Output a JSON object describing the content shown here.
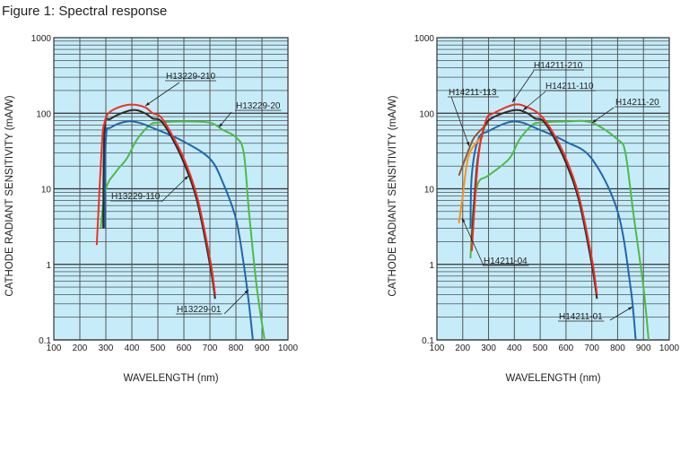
{
  "figure_title": "Figure 1: Spectral response",
  "chart_data": [
    {
      "type": "line",
      "xlabel": "WAVELENGTH (nm)",
      "ylabel": "CATHODE RADIANT SENSITIVITY (mA/W)",
      "xlim": [
        100,
        1000
      ],
      "ylim": [
        0.1,
        1000
      ],
      "yscale": "log",
      "grid": true,
      "xticks": [
        "100",
        "200",
        "300",
        "400",
        "500",
        "600",
        "700",
        "800",
        "900",
        "1000"
      ],
      "yticks": [
        "0.1",
        "1",
        "10",
        "100",
        "1000"
      ],
      "series": [
        {
          "name": "H13229-20",
          "color": "#4cbb47",
          "x": [
            280,
            300,
            340,
            380,
            420,
            470,
            500,
            600,
            700,
            750,
            800,
            830,
            850,
            880,
            910
          ],
          "y": [
            3,
            10,
            17,
            25,
            45,
            70,
            75,
            78,
            75,
            60,
            48,
            30,
            5,
            0.5,
            0.1
          ]
        },
        {
          "name": "H13229-01",
          "color": "#1f66b0",
          "x": [
            295,
            300,
            320,
            400,
            500,
            600,
            700,
            750,
            800,
            830,
            850,
            865
          ],
          "y": [
            3,
            45,
            65,
            78,
            60,
            42,
            25,
            12,
            4,
            1,
            0.3,
            0.1
          ]
        },
        {
          "name": "H13229-110",
          "color": "#2a2a2a",
          "x": [
            290,
            295,
            320,
            400,
            450,
            480,
            510,
            550,
            600,
            650,
            700,
            720
          ],
          "y": [
            3,
            60,
            85,
            110,
            100,
            85,
            80,
            50,
            22,
            7,
            1,
            0.35
          ]
        },
        {
          "name": "H13229-210",
          "color": "#ee3124",
          "x": [
            265,
            285,
            295,
            310,
            350,
            400,
            450,
            480,
            510,
            550,
            600,
            650,
            700,
            720
          ],
          "y": [
            1.8,
            40,
            75,
            100,
            120,
            130,
            120,
            100,
            90,
            55,
            25,
            8,
            1.2,
            0.4
          ]
        }
      ],
      "annotations": [
        "H13229-210",
        "H13229-20",
        "H13229-110",
        "H13229-01"
      ]
    },
    {
      "type": "line",
      "xlabel": "WAVELENGTH (nm)",
      "ylabel": "CATHODE RADIANT SENSITIVITY (mA/W)",
      "xlim": [
        100,
        1000
      ],
      "ylim": [
        0.1,
        1000
      ],
      "yscale": "log",
      "grid": true,
      "xticks": [
        "100",
        "200",
        "300",
        "400",
        "500",
        "600",
        "700",
        "800",
        "900",
        "1000"
      ],
      "yticks": [
        "0.1",
        "1",
        "10",
        "100",
        "1000"
      ],
      "series": [
        {
          "name": "H14211-20",
          "color": "#4cbb47",
          "x": [
            230,
            240,
            260,
            300,
            380,
            420,
            470,
            500,
            600,
            700,
            800,
            830,
            860,
            900,
            920
          ],
          "y": [
            1.2,
            5,
            12,
            15,
            25,
            45,
            70,
            75,
            78,
            75,
            45,
            30,
            5,
            0.5,
            0.1
          ]
        },
        {
          "name": "H14211-01",
          "color": "#1f66b0",
          "x": [
            230,
            235,
            260,
            300,
            400,
            500,
            600,
            700,
            800,
            850,
            870
          ],
          "y": [
            3,
            15,
            45,
            58,
            78,
            60,
            42,
            25,
            5,
            0.5,
            0.1
          ]
        },
        {
          "name": "H14211-113",
          "color": "#8a5a3c",
          "x": [
            185,
            210,
            240,
            270,
            300
          ],
          "y": [
            15,
            25,
            45,
            60,
            75
          ]
        },
        {
          "name": "H14211-04",
          "color": "#f7941d",
          "x": [
            185,
            200,
            220,
            250,
            280
          ],
          "y": [
            3.5,
            8,
            25,
            40,
            50
          ]
        },
        {
          "name": "H14211-110",
          "color": "#2a2a2a",
          "x": [
            235,
            255,
            280,
            310,
            400,
            450,
            480,
            510,
            550,
            600,
            650,
            700,
            720
          ],
          "y": [
            2,
            20,
            60,
            85,
            110,
            100,
            85,
            80,
            50,
            22,
            7,
            1,
            0.35
          ]
        },
        {
          "name": "H14211-210",
          "color": "#ee3124",
          "x": [
            235,
            260,
            290,
            320,
            400,
            450,
            500,
            550,
            600,
            650,
            700,
            720
          ],
          "y": [
            1.5,
            25,
            80,
            100,
            130,
            120,
            95,
            55,
            25,
            8,
            1.2,
            0.4
          ]
        }
      ],
      "annotations": [
        "H14211-210",
        "H14211-110",
        "H14211-113",
        "H14211-20",
        "H14211-04",
        "H14211-01"
      ]
    }
  ]
}
